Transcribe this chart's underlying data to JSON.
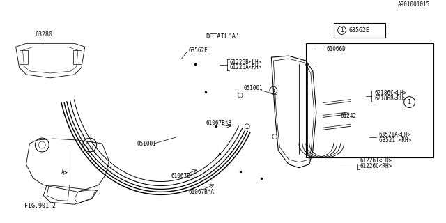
{
  "bg_color": "#ffffff",
  "border_color": "#000000",
  "line_color": "#000000",
  "title": "DETAIL'A'",
  "footer": "A901001015",
  "fig_label": "FIG.901-2",
  "labels": {
    "61226C_RH": "61226C<RH>",
    "61226I_LH": "61226I<LH>",
    "63521_RH": "63521 <RH>",
    "63521A_LH": "63521A<LH>",
    "61242": "61242",
    "62186B_RH": "62186B<RH>",
    "62186C_LH": "62186C<LH>",
    "61066D": "61066D",
    "61067B_A": "61067B*A",
    "61067B_C": "61067B*C",
    "61067B_B": "61067B*B",
    "051001_1": "051001",
    "051001_2": "051001",
    "61226A_RH": "61226A<RH>",
    "61226B_LH": "61226B<LH>",
    "63562E_1": "63562E",
    "63562E_2": "63562E",
    "63280": "63280",
    "circle1": "1"
  },
  "font_size_small": 5.5,
  "font_size_label": "FIG.901-2"
}
